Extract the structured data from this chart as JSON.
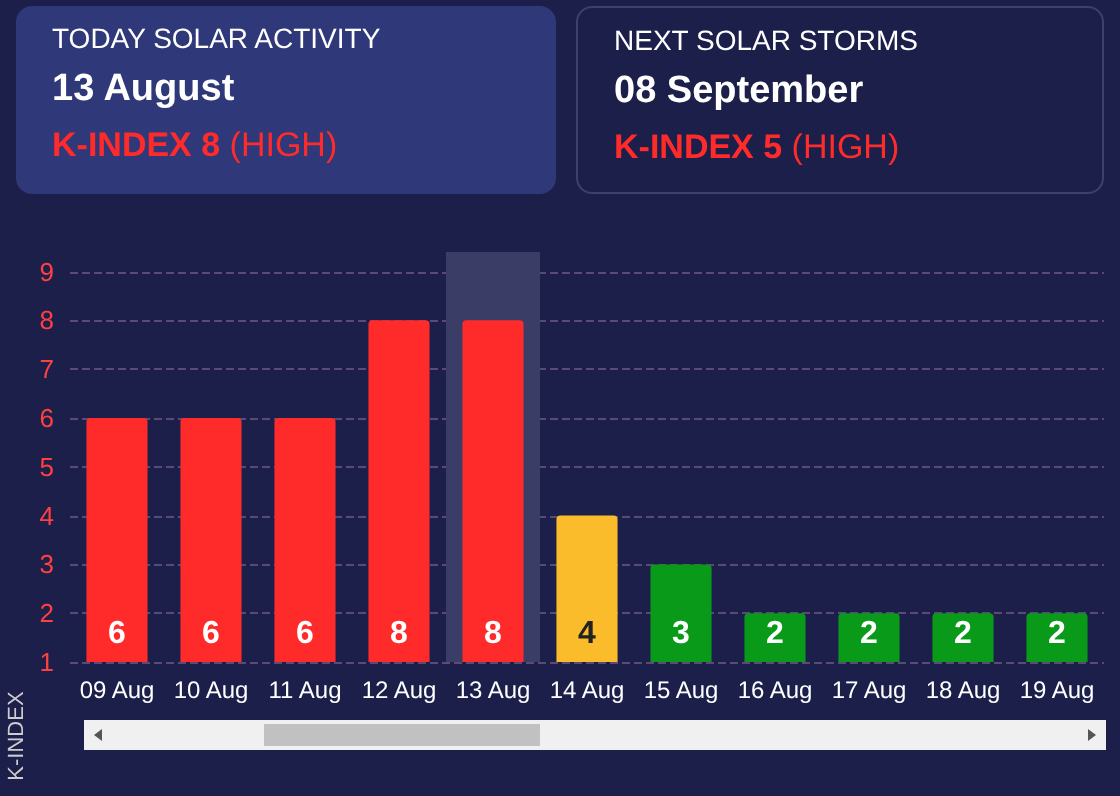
{
  "chart_data": {
    "type": "bar",
    "annotations": [
      "TODAY SOLAR ACTIVITY",
      "13 August",
      "K-INDEX 8 (HIGH)",
      "NEXT SOLAR STORMS",
      "08 September",
      "K-INDEX 5 (HIGH)"
    ],
    "ylabel": "K-INDEX",
    "categories": [
      "09 Aug",
      "10 Aug",
      "11 Aug",
      "12 Aug",
      "13 Aug",
      "14 Aug",
      "15 Aug",
      "16 Aug",
      "17 Aug",
      "18 Aug",
      "19 Aug"
    ],
    "values": [
      6,
      6,
      6,
      8,
      8,
      4,
      3,
      2,
      2,
      2,
      2
    ],
    "colors": [
      "#ff2b2b",
      "#ff2b2b",
      "#ff2b2b",
      "#ff2b2b",
      "#ff2b2b",
      "#fbbc2b",
      "#0a9a1a",
      "#0a9a1a",
      "#0a9a1a",
      "#0a9a1a",
      "#0a9a1a"
    ],
    "data_labels": true,
    "ylim": [
      1,
      9.4
    ],
    "yticks": [
      1,
      2,
      3,
      4,
      5,
      6,
      7,
      8,
      9
    ],
    "grid": "y",
    "bands": [
      {
        "axis": "x",
        "from": "13 Aug",
        "to": "13 Aug",
        "color": "#3a3e66"
      }
    ]
  }
}
